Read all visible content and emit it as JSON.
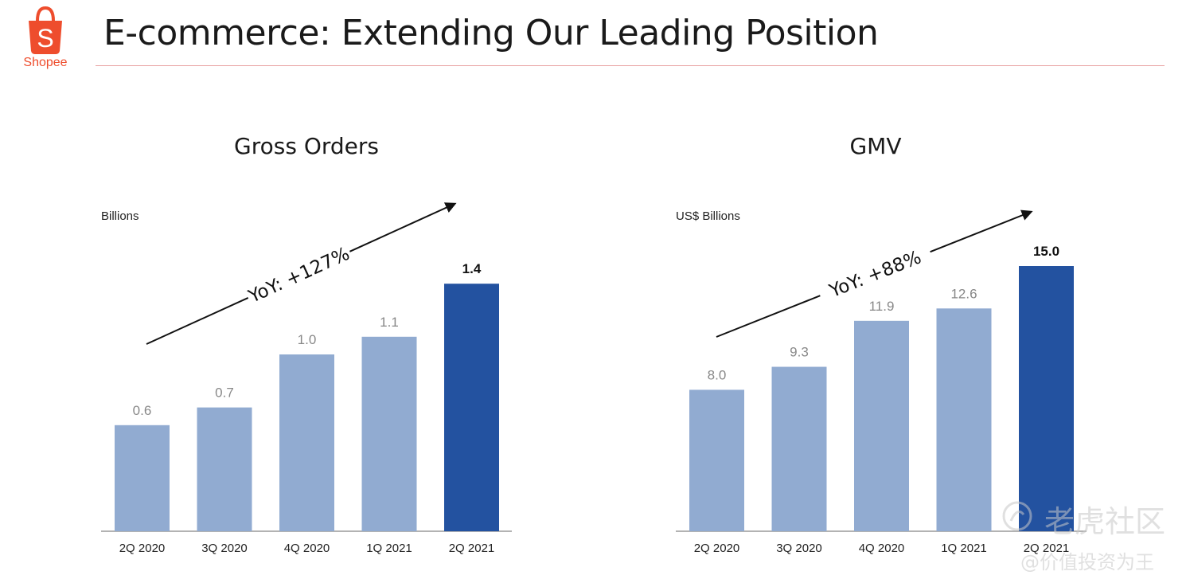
{
  "header": {
    "logo_text": "Shopee",
    "title": "E-commerce: Extending Our Leading Position"
  },
  "colors": {
    "brand": "#ee4d2d",
    "bar_light": "#91abd1",
    "bar_highlight": "#2352a0",
    "rule": "#e8a0a0"
  },
  "chart_data": [
    {
      "type": "bar",
      "title": "Gross Orders",
      "ylabel": "Billions",
      "categories": [
        "2Q 2020",
        "3Q 2020",
        "4Q 2020",
        "1Q 2021",
        "2Q 2021"
      ],
      "values": [
        0.6,
        0.7,
        1.0,
        1.1,
        1.4
      ],
      "value_labels": [
        "0.6",
        "0.7",
        "1.0",
        "1.1",
        "1.4"
      ],
      "highlight_index": 4,
      "annotation": "YoY: +127%",
      "grid": false
    },
    {
      "type": "bar",
      "title": "GMV",
      "ylabel": "US$ Billions",
      "categories": [
        "2Q 2020",
        "3Q 2020",
        "4Q 2020",
        "1Q 2021",
        "2Q 2021"
      ],
      "values": [
        8.0,
        9.3,
        11.9,
        12.6,
        15.0
      ],
      "value_labels": [
        "8.0",
        "9.3",
        "11.9",
        "12.6",
        "15.0"
      ],
      "highlight_index": 4,
      "annotation": "YoY: +88%",
      "grid": false
    }
  ],
  "watermark": {
    "line1": "老虎社区",
    "line2": "@价值投资为王"
  }
}
